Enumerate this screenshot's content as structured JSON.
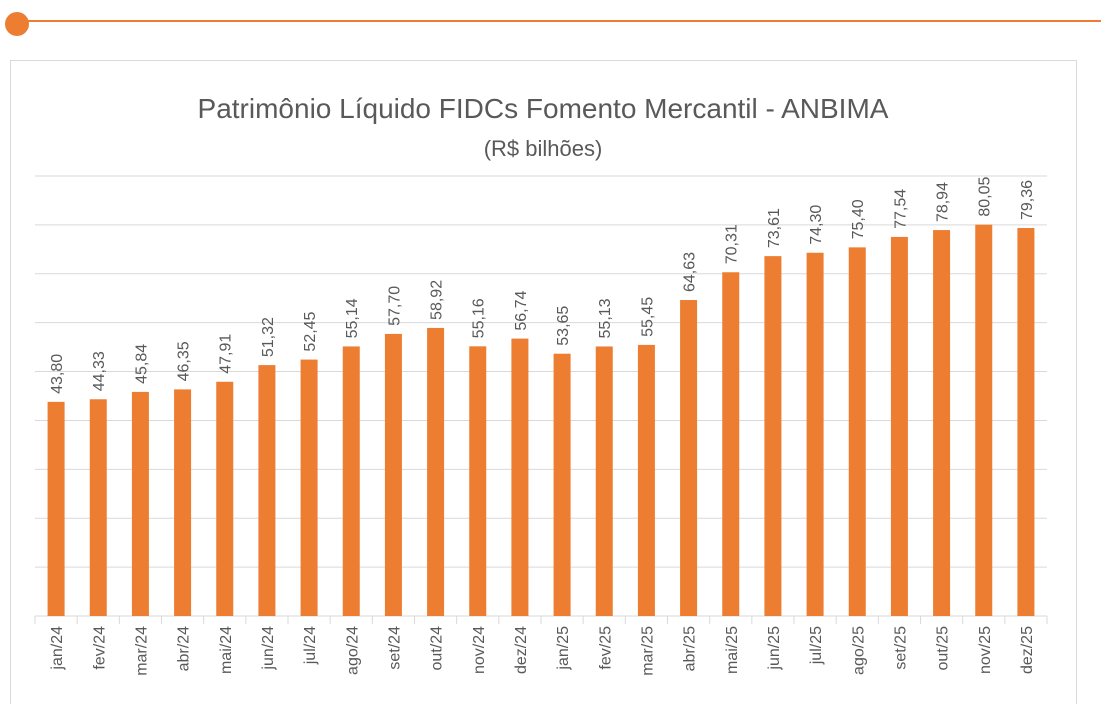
{
  "chart_data": {
    "type": "bar",
    "title": "Patrimônio Líquido FIDCs Fomento Mercantil - ANBIMA",
    "subtitle": "(R$ bilhões)",
    "categories": [
      "jan/24",
      "fev/24",
      "mar/24",
      "abr/24",
      "mai/24",
      "jun/24",
      "jul/24",
      "ago/24",
      "set/24",
      "out/24",
      "nov/24",
      "dez/24",
      "jan/25",
      "fev/25",
      "mar/25",
      "abr/25",
      "mai/25",
      "jun/25",
      "jul/25",
      "ago/25",
      "set/25",
      "out/25",
      "nov/25",
      "dez/25"
    ],
    "values": [
      43.8,
      44.33,
      45.84,
      46.35,
      47.91,
      51.32,
      52.45,
      55.14,
      57.7,
      58.92,
      55.16,
      56.74,
      53.65,
      55.13,
      55.45,
      64.63,
      70.31,
      73.61,
      74.3,
      75.4,
      77.54,
      78.94,
      80.05,
      79.36
    ],
    "value_labels": [
      "43,80",
      "44,33",
      "45,84",
      "46,35",
      "47,91",
      "51,32",
      "52,45",
      "55,14",
      "57,70",
      "58,92",
      "55,16",
      "56,74",
      "53,65",
      "55,13",
      "55,45",
      "64,63",
      "70,31",
      "73,61",
      "74,30",
      "75,40",
      "77,54",
      "78,94",
      "80,05",
      "79,36"
    ],
    "color": "#ED7D31",
    "ylim": [
      0,
      90
    ],
    "yticks": [
      0,
      10,
      20,
      30,
      40,
      50,
      60,
      70,
      80,
      90
    ],
    "grid": true
  }
}
